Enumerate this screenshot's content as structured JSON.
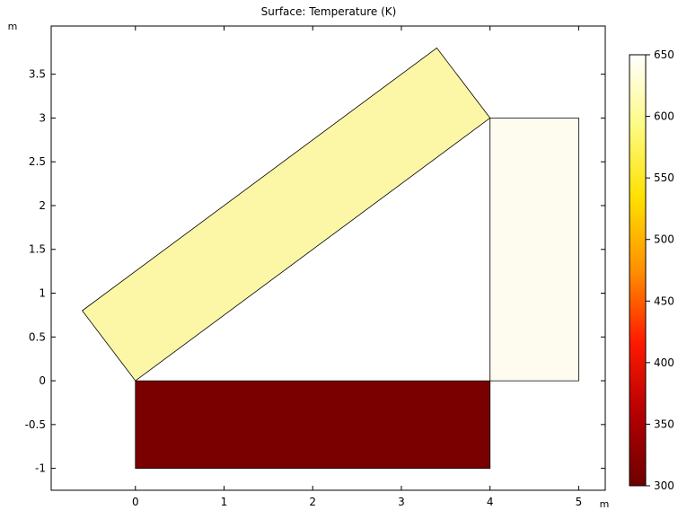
{
  "chart_data": {
    "type": "heatmap",
    "title": "Surface: Temperature (K)",
    "xlabel": "m",
    "ylabel": "m",
    "xlim": [
      -0.95,
      5.3
    ],
    "ylim": [
      -1.25,
      4.05
    ],
    "xticks": [
      0,
      1,
      2,
      3,
      4,
      5
    ],
    "yticks": [
      -1,
      -0.5,
      0,
      0.5,
      1,
      1.5,
      2,
      2.5,
      3,
      3.5
    ],
    "grid": false,
    "domains": [
      {
        "name": "bottom-block",
        "shape": "rectangle",
        "vertices": [
          [
            0,
            -1
          ],
          [
            4,
            -1
          ],
          [
            4,
            0
          ],
          [
            0,
            0
          ]
        ],
        "temperature": 300,
        "color": "#7a0000"
      },
      {
        "name": "inclined-block",
        "shape": "rotated-rectangle",
        "vertices": [
          [
            0,
            0
          ],
          [
            4,
            3
          ],
          [
            3.4,
            3.8
          ],
          [
            -0.6,
            0.8
          ]
        ],
        "temperature": 590,
        "color": "#fbf7a6"
      },
      {
        "name": "right-block",
        "shape": "rectangle",
        "vertices": [
          [
            4,
            0
          ],
          [
            5,
            0
          ],
          [
            5,
            3
          ],
          [
            4,
            3
          ]
        ],
        "temperature": 648,
        "color": "#fdfcef"
      }
    ],
    "colorbar": {
      "min": 300,
      "max": 650,
      "ticks": [
        300,
        350,
        400,
        450,
        500,
        550,
        600,
        650
      ],
      "colormap": [
        "#6e0000",
        "#b40000",
        "#ff1a00",
        "#ff9000",
        "#ffe000",
        "#fdfb80",
        "#ffffff"
      ]
    }
  }
}
